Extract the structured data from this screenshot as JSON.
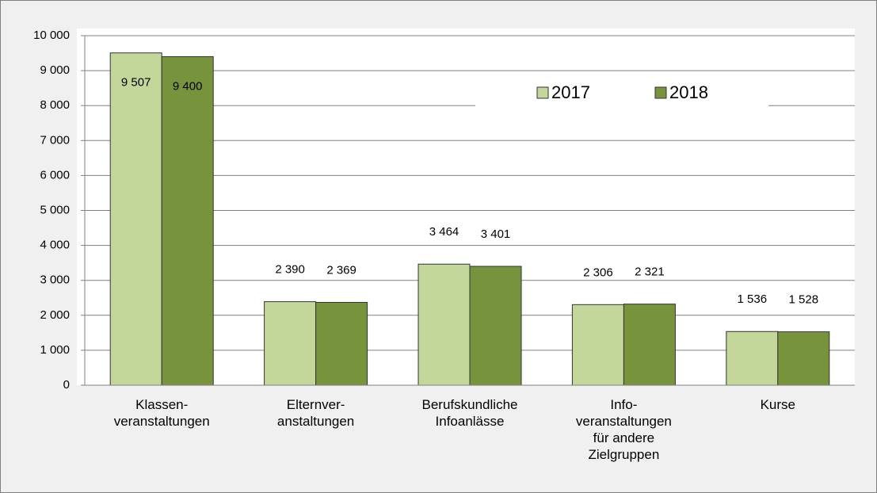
{
  "chart_data": {
    "type": "bar",
    "categories": [
      [
        "Klassen-",
        "veranstaltungen"
      ],
      [
        "Elternver-",
        "anstaltungen"
      ],
      [
        "Berufskundliche",
        "Infoanlässe"
      ],
      [
        "Info-",
        "veranstaltungen",
        "für andere",
        "Zielgruppen"
      ],
      [
        "Kurse"
      ]
    ],
    "series": [
      {
        "name": "2017",
        "color": "#c4d79b",
        "values": [
          9507,
          2390,
          3464,
          2306,
          1536
        ],
        "value_labels": [
          "9 507",
          "2 390",
          "3 464",
          "2 306",
          "1 536"
        ]
      },
      {
        "name": "2018",
        "color": "#77933c",
        "values": [
          9400,
          2369,
          3401,
          2321,
          1528
        ],
        "value_labels": [
          "9 400",
          "2 369",
          "3 401",
          "2 321",
          "1 528"
        ]
      }
    ],
    "ylim": [
      0,
      10000
    ],
    "yticks": [
      0,
      {
        "value": 1000,
        "label": "1 000"
      },
      {
        "value": 2000,
        "label": "2 000"
      },
      {
        "value": 3000,
        "label": "3 000"
      },
      {
        "value": 4000,
        "label": "4 000"
      },
      {
        "value": 5000,
        "label": "5 000"
      },
      {
        "value": 6000,
        "label": "6 000"
      },
      {
        "value": 7000,
        "label": "7 000"
      },
      {
        "value": 8000,
        "label": "8 000"
      },
      {
        "value": 9000,
        "label": "9 000"
      },
      {
        "value": 10000,
        "label": "10 000"
      }
    ],
    "grid": true,
    "legend": "upper right"
  }
}
